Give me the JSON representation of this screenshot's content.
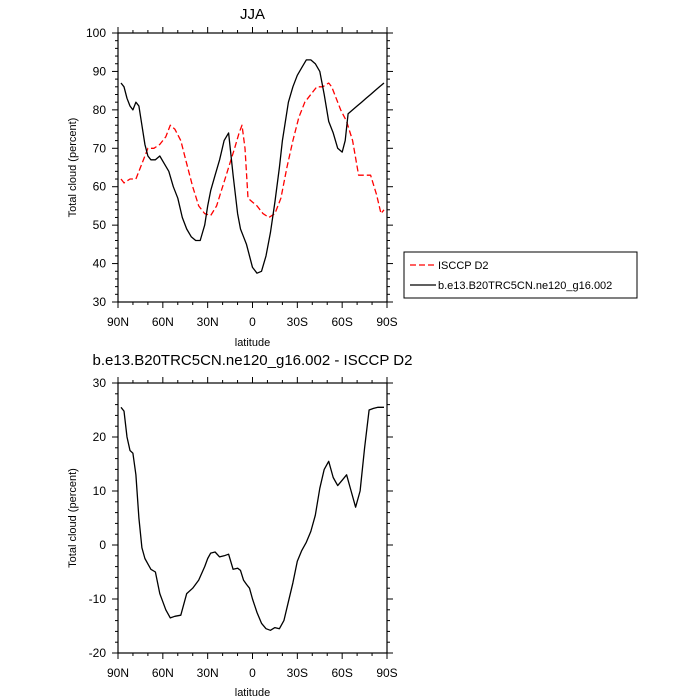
{
  "chart_data": [
    {
      "type": "line",
      "title": "JJA",
      "xlabel": "latitude",
      "ylabel": "Total cloud (percent)",
      "xlim": [
        90,
        -90
      ],
      "ylim": [
        30,
        100
      ],
      "xticks": [
        90,
        60,
        30,
        0,
        -30,
        -60,
        -90
      ],
      "xtick_labels": [
        "90N",
        "60N",
        "30N",
        "0",
        "30S",
        "60S",
        "90S"
      ],
      "yticks": [
        30,
        40,
        50,
        60,
        70,
        80,
        90,
        100
      ],
      "ytick_labels": [
        "30",
        "40",
        "50",
        "60",
        "70",
        "80",
        "90",
        "100"
      ],
      "grid": false,
      "legend_position": "outside right",
      "series": [
        {
          "name": "ISCCP D2",
          "color": "#ff0000",
          "dash": "dashed",
          "x": [
            88,
            86,
            82,
            78,
            74,
            70,
            66,
            62,
            58,
            55,
            52,
            48,
            44,
            40,
            36,
            32,
            28,
            24,
            20,
            16,
            12,
            9,
            7,
            5,
            3,
            0,
            -3,
            -7,
            -11,
            -15,
            -19,
            -23,
            -27,
            -31,
            -35,
            -39,
            -43,
            -47,
            -51,
            -53,
            -55,
            -59,
            -63,
            -67,
            -71,
            -75,
            -79,
            -83,
            -86,
            -88
          ],
          "y": [
            62,
            61,
            62,
            62,
            66,
            70,
            70,
            71,
            73,
            76,
            75,
            72,
            66,
            60,
            55,
            53,
            52.5,
            55,
            60,
            65,
            70,
            74,
            76,
            70,
            57,
            56,
            55,
            53,
            52,
            53,
            57,
            65,
            72,
            78,
            82,
            84,
            86,
            86,
            87,
            86,
            84,
            80,
            77,
            72,
            63,
            63,
            63,
            58,
            53,
            54
          ]
        },
        {
          "name": "b.e13.B20TRC5CN.ne120_g16.002",
          "color": "#000000",
          "dash": "solid",
          "x": [
            88,
            86,
            84,
            82,
            80,
            78,
            76,
            74,
            72,
            70,
            68,
            65,
            62,
            59,
            56,
            53,
            50,
            47,
            44,
            41,
            38,
            35,
            32,
            30,
            28,
            25,
            22,
            19,
            16,
            13,
            10,
            8,
            6,
            4,
            2,
            0,
            -3,
            -6,
            -9,
            -12,
            -15,
            -18,
            -20,
            -22,
            -24,
            -27,
            -30,
            -33,
            -36,
            -39,
            -42,
            -45,
            -48,
            -51,
            -54,
            -57,
            -60,
            -62,
            -64,
            -67,
            -70,
            -73,
            -76,
            -79,
            -82,
            -85,
            -88
          ],
          "y": [
            87,
            86,
            83,
            81,
            80,
            82,
            81,
            76,
            71,
            68,
            67,
            67,
            68,
            66,
            64,
            60,
            57,
            52,
            49,
            47,
            46,
            46,
            50,
            55,
            59,
            63,
            67,
            72,
            74,
            63,
            53,
            49,
            47,
            45,
            42,
            39,
            37.5,
            38,
            42,
            48,
            56,
            65,
            72,
            77,
            82,
            86,
            89,
            91,
            93,
            93,
            92,
            90,
            84,
            77,
            74,
            70,
            69,
            72,
            79,
            80,
            81,
            82,
            83,
            84,
            85,
            86,
            87
          ],
          "_note_unused": ""
        }
      ]
    },
    {
      "type": "line",
      "title": "b.e13.B20TRC5CN.ne120_g16.002 - ISCCP D2",
      "xlabel": "latitude",
      "ylabel": "Total cloud (percent)",
      "xlim": [
        90,
        -90
      ],
      "ylim": [
        -20,
        30
      ],
      "xticks": [
        90,
        60,
        30,
        0,
        -30,
        -60,
        -90
      ],
      "xtick_labels": [
        "90N",
        "60N",
        "30N",
        "0",
        "30S",
        "60S",
        "90S"
      ],
      "yticks": [
        -20,
        -10,
        0,
        10,
        20,
        30
      ],
      "ytick_labels": [
        "-20",
        "-10",
        "0",
        "10",
        "20",
        "30"
      ],
      "grid": false,
      "series": [
        {
          "color": "#000000",
          "dash": "solid",
          "x": [
            88,
            86,
            84,
            82,
            80,
            78,
            76,
            74,
            72,
            70,
            68,
            65,
            62,
            60,
            58,
            55,
            52,
            48,
            44,
            40,
            36,
            32,
            30,
            28,
            25,
            22,
            19,
            16,
            13,
            10,
            8,
            6,
            4,
            2,
            0,
            -3,
            -6,
            -9,
            -12,
            -15,
            -18,
            -21,
            -24,
            -27,
            -30,
            -33,
            -36,
            -39,
            -42,
            -45,
            -48,
            -51,
            -54,
            -57,
            -60,
            -63,
            -66,
            -69,
            -72,
            -75,
            -78,
            -81,
            -84,
            -86,
            -88
          ],
          "y": [
            25.5,
            24.8,
            20,
            17.5,
            17,
            13,
            5,
            -0.5,
            -2.5,
            -3.5,
            -4.5,
            -5,
            -9,
            -10.5,
            -12,
            -13.5,
            -13.2,
            -13,
            -9,
            -8,
            -6.5,
            -4,
            -2.5,
            -1.5,
            -1.3,
            -2.2,
            -2,
            -1.7,
            -4.5,
            -4.3,
            -4.7,
            -6.5,
            -7.3,
            -8,
            -10,
            -12.5,
            -14.5,
            -15.5,
            -15.8,
            -15.3,
            -15.5,
            -14,
            -10.5,
            -7,
            -3,
            -1,
            0.5,
            2.5,
            5.5,
            10.5,
            14,
            15.5,
            12.5,
            11,
            12,
            13,
            10,
            7,
            10,
            18,
            25,
            25.3,
            25.5,
            25.5,
            25.5
          ]
        }
      ]
    }
  ]
}
